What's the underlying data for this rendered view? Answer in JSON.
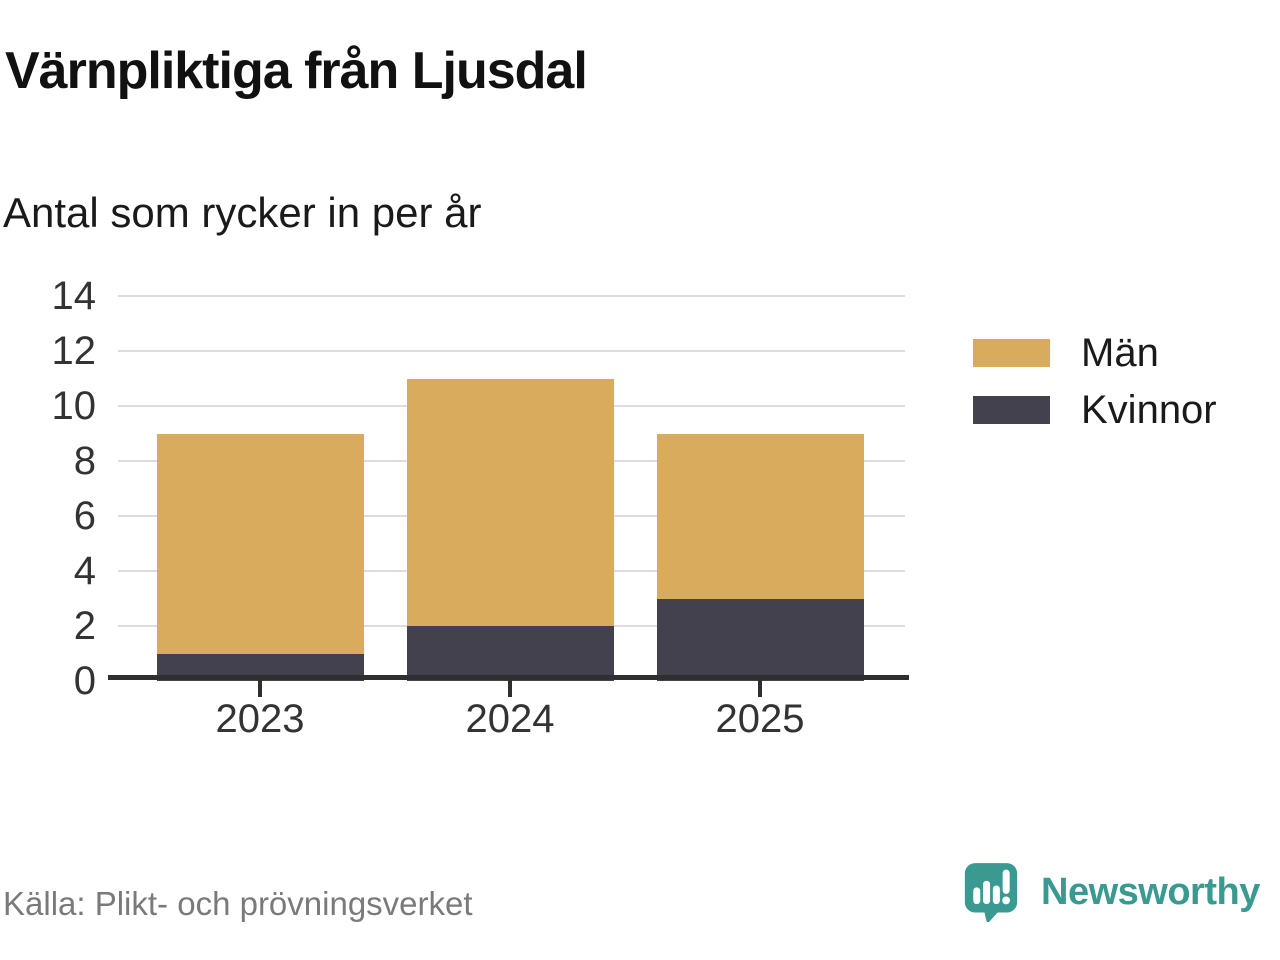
{
  "chart_data": {
    "type": "bar",
    "stacked": true,
    "title": "Värnpliktiga från Ljusdal",
    "subtitle": "Antal som rycker in per år",
    "categories": [
      "2023",
      "2024",
      "2025"
    ],
    "series": [
      {
        "name": "Män",
        "color": "#D9AB5C",
        "values": [
          8,
          9,
          6
        ]
      },
      {
        "name": "Kvinnor",
        "color": "#44414F",
        "values": [
          1,
          2,
          3
        ]
      }
    ],
    "stack_order_bottom_to_top": [
      "Kvinnor",
      "Män"
    ],
    "totals": [
      9,
      11,
      9
    ],
    "xlabel": "",
    "ylabel": "",
    "ylim": [
      0,
      14
    ],
    "yticks": [
      0,
      2,
      4,
      6,
      8,
      10,
      12,
      14
    ],
    "grid": "horizontal",
    "legend_position": "right"
  },
  "footer": {
    "source": "Källa: Plikt- och prövningsverket",
    "brand_name": "Newsworthy",
    "logo_icon": "newsworthy-speech-bubble-bar-chart-icon"
  },
  "colors": {
    "title": "#111111",
    "subtitle": "#1A1A1A",
    "tick_label": "#333333",
    "gridline": "#DDDDDD",
    "axis": "#2F2F2F",
    "source_text": "#7A7A7A",
    "brand": "#3A9A91",
    "series_man": "#D9AB5C",
    "series_kvinnor": "#44414F"
  }
}
